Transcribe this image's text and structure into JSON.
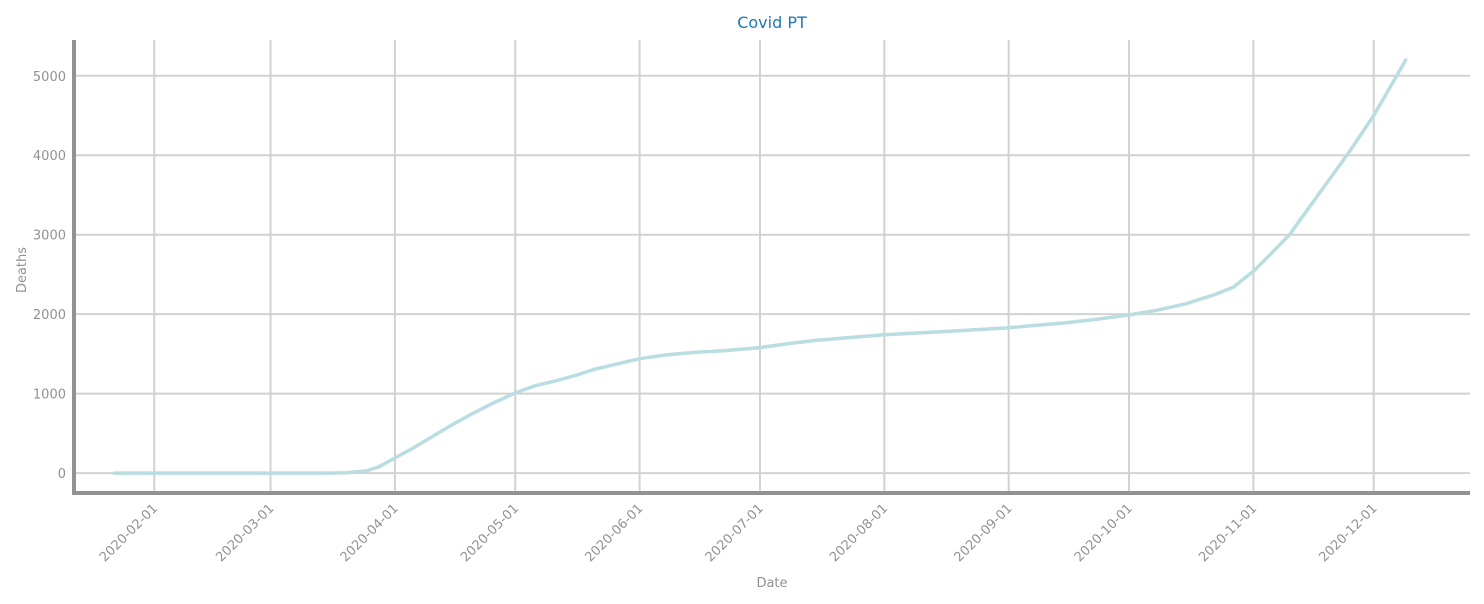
{
  "chart_data": {
    "type": "line",
    "title": "Covid PT",
    "xlabel": "Date",
    "ylabel": "Deaths",
    "x_ticks": [
      "2020-02-01",
      "2020-03-01",
      "2020-04-01",
      "2020-05-01",
      "2020-06-01",
      "2020-07-01",
      "2020-08-01",
      "2020-09-01",
      "2020-10-01",
      "2020-11-01",
      "2020-12-01"
    ],
    "y_ticks": [
      0,
      1000,
      2000,
      3000,
      4000,
      5000
    ],
    "xlim": [
      "2020-01-12",
      "2020-12-25"
    ],
    "ylim": [
      -250,
      5450
    ],
    "grid": true,
    "series": [
      {
        "x": [
          "2020-01-22",
          "2020-03-15",
          "2020-03-20",
          "2020-03-25",
          "2020-03-28",
          "2020-04-01",
          "2020-04-05",
          "2020-04-10",
          "2020-04-15",
          "2020-04-20",
          "2020-04-25",
          "2020-05-01",
          "2020-05-06",
          "2020-05-11",
          "2020-05-16",
          "2020-05-21",
          "2020-05-26",
          "2020-06-01",
          "2020-06-08",
          "2020-06-15",
          "2020-06-22",
          "2020-07-01",
          "2020-07-08",
          "2020-07-15",
          "2020-07-22",
          "2020-08-01",
          "2020-08-08",
          "2020-08-15",
          "2020-08-22",
          "2020-09-01",
          "2020-09-08",
          "2020-09-15",
          "2020-09-22",
          "2020-10-01",
          "2020-10-08",
          "2020-10-15",
          "2020-10-22",
          "2020-10-27",
          "2020-11-01",
          "2020-11-05",
          "2020-11-10",
          "2020-11-15",
          "2020-11-20",
          "2020-11-25",
          "2020-12-01",
          "2020-12-05",
          "2020-12-09"
        ],
        "values": [
          0,
          0,
          5,
          30,
          80,
          190,
          300,
          450,
          600,
          740,
          870,
          1010,
          1100,
          1160,
          1230,
          1310,
          1370,
          1440,
          1490,
          1520,
          1540,
          1580,
          1630,
          1670,
          1700,
          1740,
          1760,
          1780,
          1800,
          1830,
          1860,
          1890,
          1930,
          1990,
          2050,
          2130,
          2240,
          2340,
          2540,
          2740,
          3000,
          3350,
          3700,
          4050,
          4500,
          4850,
          5200
        ],
        "color": "#b9dde0"
      }
    ],
    "colors": {
      "title": "#1f77b4",
      "axis": "#929292",
      "grid": "#d2d2d2",
      "tick_text": "#929292"
    }
  }
}
